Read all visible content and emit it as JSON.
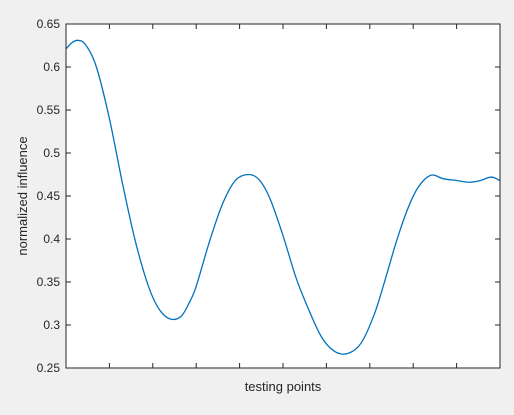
{
  "figure": {
    "background": "#f0f0f0",
    "axes_background": "#ffffff",
    "line_color": "#0072bd",
    "axis_color": "#262626"
  },
  "chart_data": {
    "type": "line",
    "xlabel": "testing points",
    "ylabel": "normalized influence",
    "xlim": [
      0,
      1
    ],
    "ylim": [
      0.25,
      0.65
    ],
    "yticks": [
      0.25,
      0.3,
      0.35,
      0.4,
      0.45,
      0.5,
      0.55,
      0.6,
      0.65
    ],
    "ytick_labels": [
      "0.25",
      "0.3",
      "0.35",
      "0.4",
      "0.45",
      "0.5",
      "0.55",
      "0.6",
      "0.65"
    ],
    "xticks": [
      0,
      0.1,
      0.2,
      0.3,
      0.4,
      0.5,
      0.6,
      0.7,
      0.8,
      0.9,
      1.0
    ],
    "xtick_labels_shown": false,
    "grid": false,
    "series": [
      {
        "x": [
          0.0,
          0.013,
          0.027,
          0.045,
          0.07,
          0.1,
          0.13,
          0.16,
          0.19,
          0.215,
          0.24,
          0.265,
          0.285,
          0.3,
          0.33,
          0.36,
          0.39,
          0.42,
          0.445,
          0.47,
          0.5,
          0.53,
          0.56,
          0.59,
          0.62,
          0.65,
          0.68,
          0.71,
          0.735,
          0.76,
          0.785,
          0.81,
          0.84,
          0.87,
          0.9,
          0.93,
          0.955,
          0.98,
          1.0
        ],
        "y": [
          0.621,
          0.628,
          0.631,
          0.626,
          0.6,
          0.54,
          0.465,
          0.397,
          0.345,
          0.318,
          0.307,
          0.31,
          0.327,
          0.345,
          0.396,
          0.44,
          0.468,
          0.475,
          0.469,
          0.447,
          0.404,
          0.355,
          0.317,
          0.285,
          0.269,
          0.267,
          0.279,
          0.312,
          0.352,
          0.395,
          0.432,
          0.459,
          0.474,
          0.47,
          0.468,
          0.466,
          0.468,
          0.472,
          0.468
        ]
      }
    ]
  }
}
